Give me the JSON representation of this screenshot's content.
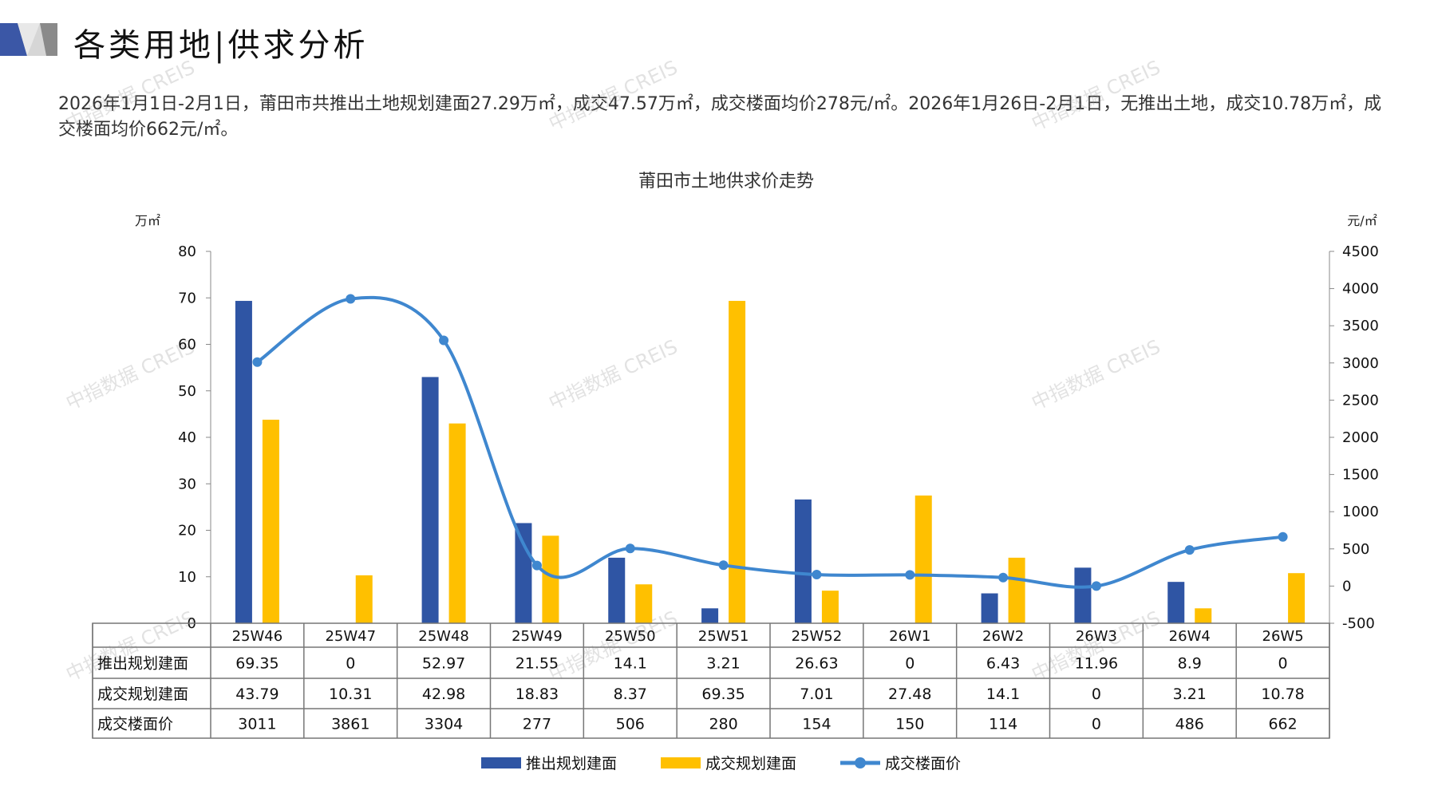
{
  "header": {
    "title": "各类用地|供求分析"
  },
  "summary": "2026年1月1日-2月1日，莆田市共推出土地规划建面27.29万㎡，成交47.57万㎡，成交楼面均价278元/㎡。2026年1月26日-2月1日，无推出土地，成交10.78万㎡，成交楼面均价662元/㎡。",
  "watermark": "中指数据 CREIS",
  "colors": {
    "supply": "#2f55a4",
    "deal": "#ffc000",
    "price": "#3f87cf",
    "accent": "#3b57a6"
  },
  "chart_data": {
    "type": "bar+line",
    "title": "莆田市土地供求价走势",
    "y_left_unit": "万㎡",
    "y_right_unit": "元/㎡",
    "y_left_range": [
      0,
      80
    ],
    "y_left_ticks": [
      "0",
      "10",
      "20",
      "30",
      "40",
      "50",
      "60",
      "70",
      "80"
    ],
    "y_right_range": [
      -500,
      4500
    ],
    "y_right_ticks": [
      "-500",
      "0",
      "500",
      "1000",
      "1500",
      "2000",
      "2500",
      "3000",
      "3500",
      "4000",
      "4500"
    ],
    "categories": [
      "25W46",
      "25W47",
      "25W48",
      "25W49",
      "25W50",
      "25W51",
      "25W52",
      "26W1",
      "26W2",
      "26W3",
      "26W4",
      "26W5"
    ],
    "series": [
      {
        "name": "推出规划建面",
        "type": "bar",
        "axis": "left",
        "values": [
          69.35,
          0,
          52.97,
          21.55,
          14.1,
          3.21,
          26.63,
          0,
          6.43,
          11.96,
          8.9,
          0
        ],
        "labels": [
          "69.35",
          "0",
          "52.97",
          "21.55",
          "14.1",
          "3.21",
          "26.63",
          "0",
          "6.43",
          "11.96",
          "8.9",
          "0"
        ]
      },
      {
        "name": "成交规划建面",
        "type": "bar",
        "axis": "left",
        "values": [
          43.79,
          10.31,
          42.98,
          18.83,
          8.37,
          69.35,
          7.01,
          27.48,
          14.1,
          0,
          3.21,
          10.78
        ],
        "labels": [
          "43.79",
          "10.31",
          "42.98",
          "18.83",
          "8.37",
          "69.35",
          "7.01",
          "27.48",
          "14.1",
          "0",
          "3.21",
          "10.78"
        ]
      },
      {
        "name": "成交楼面价",
        "type": "line",
        "axis": "right",
        "values": [
          3011,
          3861,
          3304,
          277,
          506,
          280,
          154,
          150,
          114,
          0,
          486,
          662
        ],
        "labels": [
          "3011",
          "3861",
          "3304",
          "277",
          "506",
          "280",
          "154",
          "150",
          "114",
          "0",
          "486",
          "662"
        ]
      }
    ],
    "legend_position": "bottom",
    "data_table": true
  }
}
